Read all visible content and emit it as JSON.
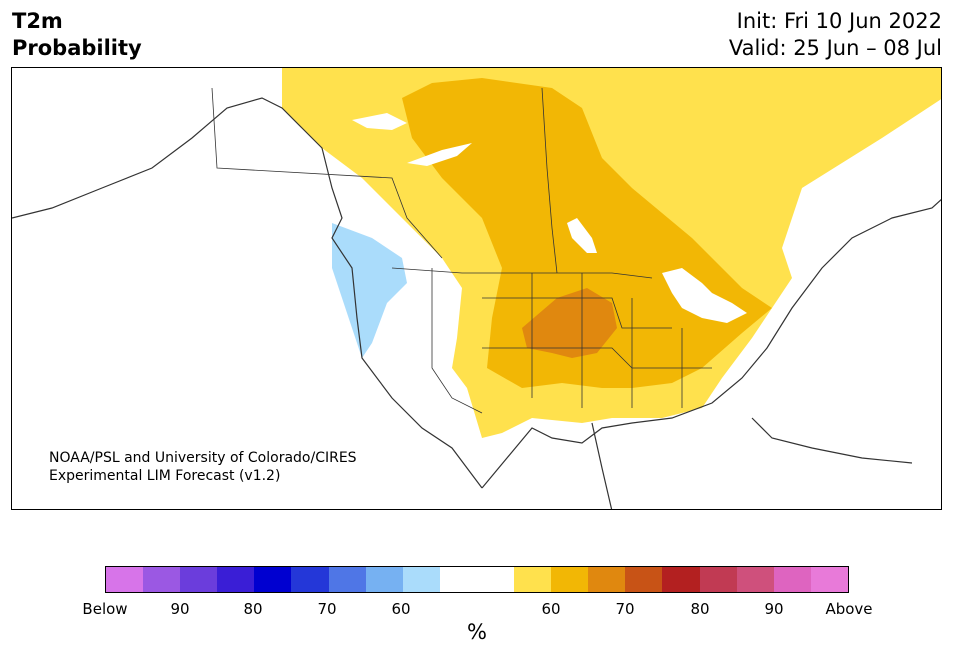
{
  "header": {
    "title": "T2m\nProbability",
    "init": "Init: Fri 10 Jun 2022\nValid: 25 Jun – 08 Jul"
  },
  "map": {
    "credit": "NOAA/PSL and University of Colorado/CIRES\nExperimental LIM Forecast (v1.2)",
    "region": "North America"
  },
  "colorbar": {
    "colors": [
      "#d774e9",
      "#9b58e3",
      "#6b3ddc",
      "#3a1ed6",
      "#0000d0",
      "#2437d8",
      "#4f76e6",
      "#76b1f2",
      "#aadcfb",
      "#ffffff",
      "#ffffff",
      "#ffe14d",
      "#f2b705",
      "#e0880f",
      "#c85316",
      "#b32020",
      "#c13a53",
      "#cf507c",
      "#de64c0",
      "#e87ad9"
    ],
    "tick_labels": [
      "Below",
      "90",
      "80",
      "70",
      "60",
      "60",
      "70",
      "80",
      "90",
      "Above"
    ],
    "unit": "%"
  }
}
